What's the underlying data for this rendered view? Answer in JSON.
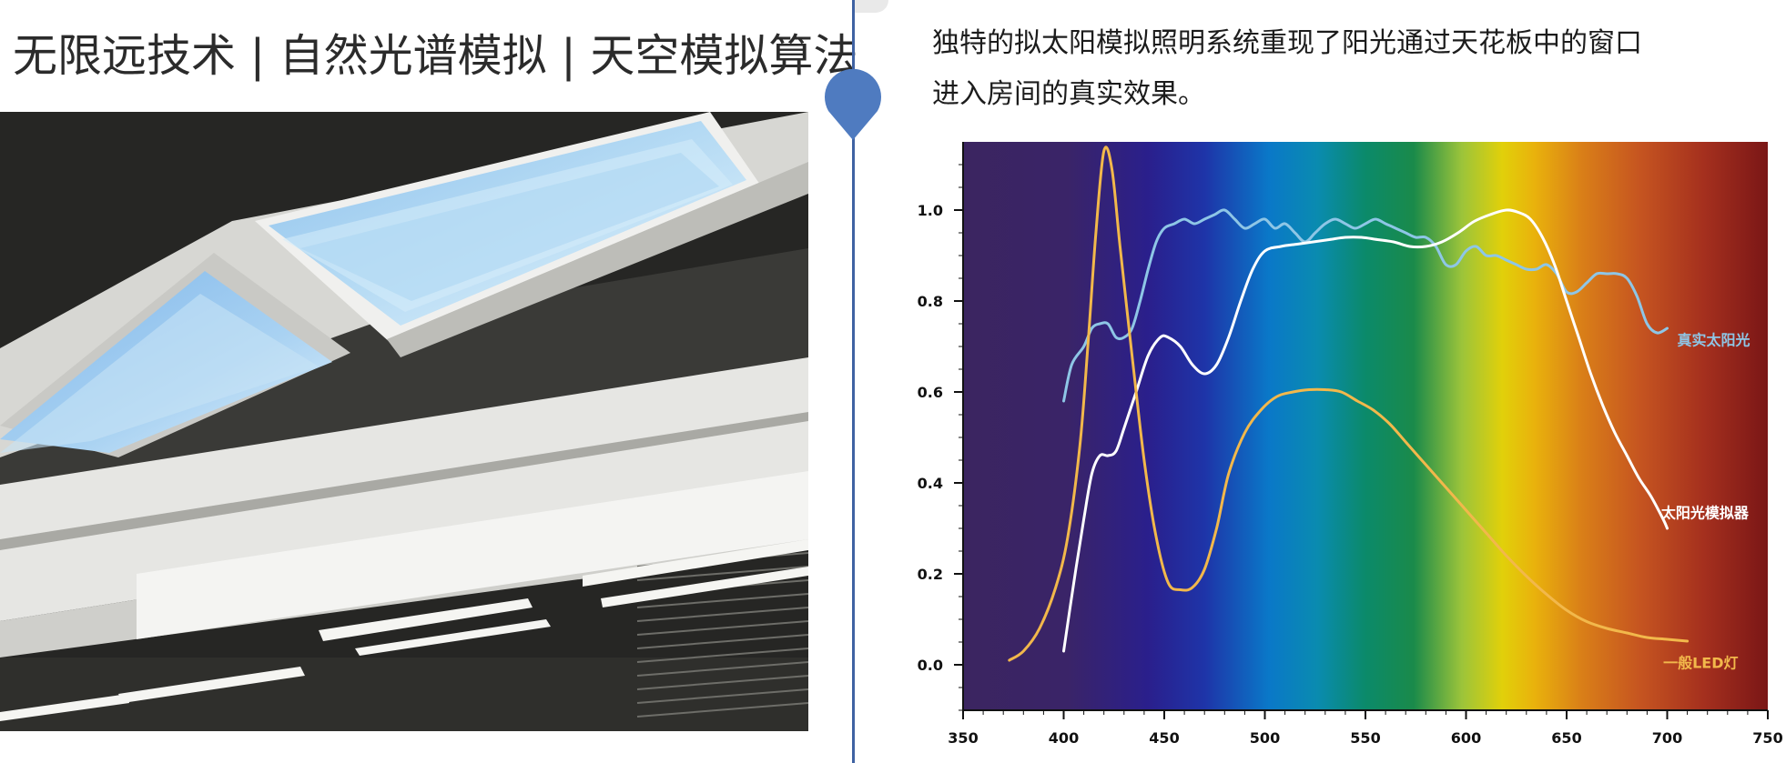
{
  "headline": "无限远技术 | 自然光谱模拟 | 天空模拟算法",
  "description": {
    "line1": "独特的拟太阳模拟照明系统重现了阳光通过天花板中的窗口",
    "line2": "进入房间的真实效果。"
  },
  "colors": {
    "divider": "#3f62a3",
    "marker": "#4f7bc0",
    "sunlight": "#8ec6e6",
    "simulator": "#ffffff",
    "led": "#f2b84b"
  },
  "chart_data": {
    "type": "line",
    "xlim": [
      350,
      750
    ],
    "ylim": [
      -0.1,
      1.15
    ],
    "x_ticks": [
      "350",
      "400",
      "450",
      "500",
      "550",
      "600",
      "650",
      "700",
      "750"
    ],
    "y_ticks": [
      "0.0",
      "0.2",
      "0.4",
      "0.6",
      "0.8",
      "1.0"
    ],
    "background": "visible spectrum gradient",
    "series": [
      {
        "name": "真实太阳光",
        "color": "#8ec6e6",
        "points": [
          [
            400,
            0.58
          ],
          [
            404,
            0.66
          ],
          [
            410,
            0.7
          ],
          [
            414,
            0.74
          ],
          [
            418,
            0.75
          ],
          [
            422,
            0.75
          ],
          [
            426,
            0.72
          ],
          [
            430,
            0.72
          ],
          [
            434,
            0.74
          ],
          [
            438,
            0.8
          ],
          [
            442,
            0.87
          ],
          [
            446,
            0.93
          ],
          [
            450,
            0.96
          ],
          [
            455,
            0.97
          ],
          [
            460,
            0.98
          ],
          [
            465,
            0.97
          ],
          [
            470,
            0.98
          ],
          [
            475,
            0.99
          ],
          [
            480,
            1.0
          ],
          [
            485,
            0.98
          ],
          [
            490,
            0.96
          ],
          [
            495,
            0.97
          ],
          [
            500,
            0.98
          ],
          [
            505,
            0.96
          ],
          [
            510,
            0.97
          ],
          [
            515,
            0.95
          ],
          [
            520,
            0.93
          ],
          [
            525,
            0.95
          ],
          [
            530,
            0.97
          ],
          [
            535,
            0.98
          ],
          [
            540,
            0.97
          ],
          [
            545,
            0.96
          ],
          [
            550,
            0.97
          ],
          [
            555,
            0.98
          ],
          [
            560,
            0.97
          ],
          [
            565,
            0.96
          ],
          [
            570,
            0.95
          ],
          [
            575,
            0.94
          ],
          [
            580,
            0.94
          ],
          [
            585,
            0.92
          ],
          [
            590,
            0.88
          ],
          [
            595,
            0.88
          ],
          [
            600,
            0.91
          ],
          [
            605,
            0.92
          ],
          [
            610,
            0.9
          ],
          [
            615,
            0.9
          ],
          [
            620,
            0.89
          ],
          [
            625,
            0.88
          ],
          [
            630,
            0.87
          ],
          [
            635,
            0.87
          ],
          [
            640,
            0.88
          ],
          [
            645,
            0.86
          ],
          [
            650,
            0.82
          ],
          [
            655,
            0.82
          ],
          [
            660,
            0.84
          ],
          [
            665,
            0.86
          ],
          [
            670,
            0.86
          ],
          [
            675,
            0.86
          ],
          [
            680,
            0.85
          ],
          [
            685,
            0.81
          ],
          [
            690,
            0.75
          ],
          [
            695,
            0.73
          ],
          [
            700,
            0.74
          ]
        ]
      },
      {
        "name": "太阳光模拟器",
        "color": "#ffffff",
        "points": [
          [
            400,
            0.03
          ],
          [
            405,
            0.18
          ],
          [
            410,
            0.32
          ],
          [
            414,
            0.42
          ],
          [
            418,
            0.46
          ],
          [
            422,
            0.46
          ],
          [
            426,
            0.47
          ],
          [
            430,
            0.52
          ],
          [
            436,
            0.6
          ],
          [
            442,
            0.68
          ],
          [
            448,
            0.72
          ],
          [
            452,
            0.72
          ],
          [
            458,
            0.7
          ],
          [
            464,
            0.66
          ],
          [
            470,
            0.64
          ],
          [
            476,
            0.66
          ],
          [
            482,
            0.72
          ],
          [
            488,
            0.8
          ],
          [
            494,
            0.87
          ],
          [
            500,
            0.91
          ],
          [
            508,
            0.92
          ],
          [
            516,
            0.925
          ],
          [
            524,
            0.93
          ],
          [
            532,
            0.935
          ],
          [
            540,
            0.94
          ],
          [
            548,
            0.94
          ],
          [
            556,
            0.935
          ],
          [
            564,
            0.93
          ],
          [
            572,
            0.92
          ],
          [
            580,
            0.92
          ],
          [
            588,
            0.93
          ],
          [
            596,
            0.95
          ],
          [
            604,
            0.975
          ],
          [
            612,
            0.99
          ],
          [
            620,
            1.0
          ],
          [
            626,
            0.995
          ],
          [
            632,
            0.98
          ],
          [
            638,
            0.94
          ],
          [
            644,
            0.88
          ],
          [
            650,
            0.8
          ],
          [
            656,
            0.72
          ],
          [
            662,
            0.64
          ],
          [
            668,
            0.57
          ],
          [
            674,
            0.51
          ],
          [
            680,
            0.46
          ],
          [
            686,
            0.41
          ],
          [
            692,
            0.37
          ],
          [
            698,
            0.32
          ],
          [
            700,
            0.3
          ]
        ]
      },
      {
        "name": "一般LED灯",
        "color": "#f2b84b",
        "points": [
          [
            373,
            0.01
          ],
          [
            380,
            0.03
          ],
          [
            388,
            0.08
          ],
          [
            396,
            0.17
          ],
          [
            402,
            0.28
          ],
          [
            408,
            0.48
          ],
          [
            412,
            0.7
          ],
          [
            416,
            0.95
          ],
          [
            420,
            1.13
          ],
          [
            424,
            1.09
          ],
          [
            428,
            0.92
          ],
          [
            434,
            0.68
          ],
          [
            440,
            0.45
          ],
          [
            446,
            0.28
          ],
          [
            452,
            0.18
          ],
          [
            458,
            0.165
          ],
          [
            464,
            0.17
          ],
          [
            470,
            0.21
          ],
          [
            476,
            0.3
          ],
          [
            482,
            0.42
          ],
          [
            490,
            0.51
          ],
          [
            498,
            0.56
          ],
          [
            506,
            0.59
          ],
          [
            514,
            0.6
          ],
          [
            522,
            0.605
          ],
          [
            530,
            0.605
          ],
          [
            538,
            0.6
          ],
          [
            546,
            0.58
          ],
          [
            554,
            0.56
          ],
          [
            562,
            0.53
          ],
          [
            570,
            0.49
          ],
          [
            580,
            0.44
          ],
          [
            590,
            0.39
          ],
          [
            600,
            0.34
          ],
          [
            610,
            0.29
          ],
          [
            620,
            0.24
          ],
          [
            630,
            0.195
          ],
          [
            640,
            0.155
          ],
          [
            650,
            0.12
          ],
          [
            660,
            0.095
          ],
          [
            670,
            0.08
          ],
          [
            680,
            0.07
          ],
          [
            690,
            0.06
          ],
          [
            700,
            0.056
          ],
          [
            710,
            0.052
          ]
        ]
      }
    ]
  }
}
